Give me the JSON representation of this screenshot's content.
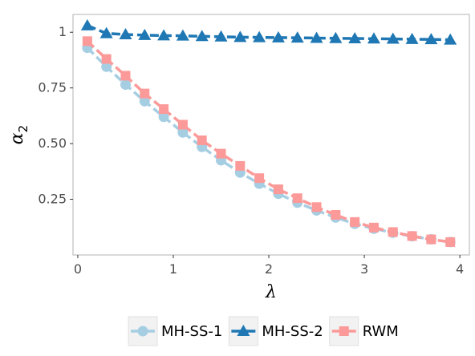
{
  "chart_data": {
    "type": "line",
    "xlabel": "λ",
    "ylabel": "α",
    "ylabel_subscript": "2",
    "xlim": [
      -0.05,
      4.1
    ],
    "ylim": [
      0.0,
      1.08
    ],
    "xticks": [
      0,
      1,
      2,
      3,
      4
    ],
    "xtick_labels": [
      "0",
      "1",
      "2",
      "3",
      "4"
    ],
    "yticks": [
      0.25,
      0.5,
      0.75,
      1.0
    ],
    "ytick_labels": [
      "0.25",
      "0.50",
      "0.75",
      "1"
    ],
    "grid": false,
    "legend_position": "bottom",
    "x": [
      0.1,
      0.3,
      0.5,
      0.7,
      0.9,
      1.1,
      1.3,
      1.5,
      1.7,
      1.9,
      2.1,
      2.3,
      2.5,
      2.7,
      2.9,
      3.1,
      3.3,
      3.5,
      3.7,
      3.9
    ],
    "series": [
      {
        "name": "MH-SS-1",
        "color": "#a6cee3",
        "marker": "circle",
        "values": [
          0.93,
          0.845,
          0.765,
          0.69,
          0.62,
          0.55,
          0.485,
          0.425,
          0.37,
          0.32,
          0.275,
          0.235,
          0.2,
          0.168,
          0.14,
          0.118,
          0.1,
          0.084,
          0.07,
          0.058
        ]
      },
      {
        "name": "MH-SS-2",
        "color": "#1f78b4",
        "marker": "triangle",
        "values": [
          1.03,
          0.995,
          0.99,
          0.987,
          0.985,
          0.984,
          0.982,
          0.98,
          0.978,
          0.977,
          0.976,
          0.975,
          0.974,
          0.973,
          0.972,
          0.971,
          0.97,
          0.969,
          0.968,
          0.966
        ]
      },
      {
        "name": "RWM",
        "color": "#fb9a99",
        "marker": "square",
        "values": [
          0.96,
          0.88,
          0.805,
          0.725,
          0.655,
          0.585,
          0.515,
          0.455,
          0.4,
          0.345,
          0.295,
          0.255,
          0.215,
          0.18,
          0.148,
          0.123,
          0.103,
          0.085,
          0.07,
          0.058
        ]
      }
    ]
  }
}
